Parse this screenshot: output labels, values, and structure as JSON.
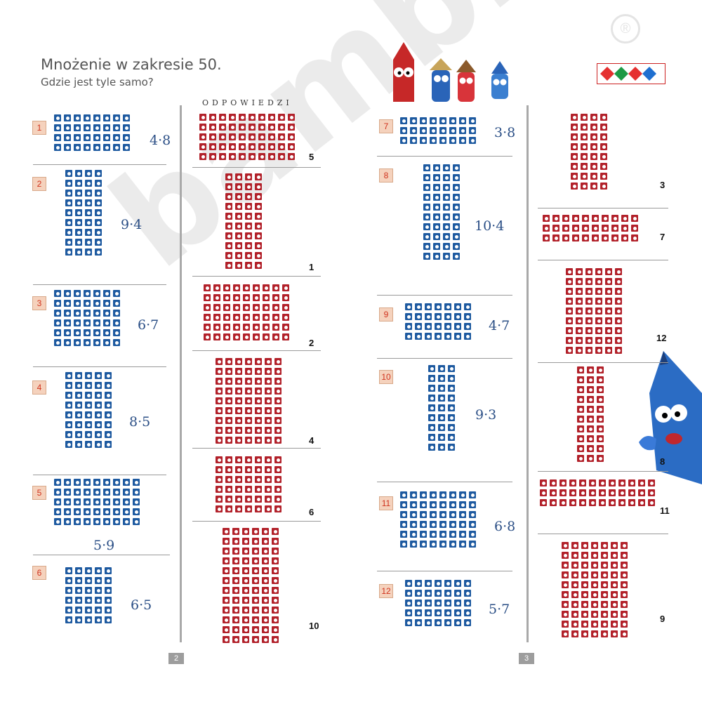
{
  "header": {
    "title": "Mnożenie w zakresie 50.",
    "subtitle": "Gdzie jest tyle samo?",
    "answers_label": "ODPOWIEDZI"
  },
  "brand": {
    "watermark": "bambino",
    "registered": "®"
  },
  "colors": {
    "task_blue": "#1e5aa0",
    "answer_red": "#b2212a",
    "number_badge": "#f5d2bd"
  },
  "tasks": [
    {
      "num": "1",
      "expr": "4·8"
    },
    {
      "num": "2",
      "expr": "9·4"
    },
    {
      "num": "3",
      "expr": "6·7"
    },
    {
      "num": "4",
      "expr": "8·5"
    },
    {
      "num": "5",
      "expr": "5·9"
    },
    {
      "num": "6",
      "expr": "6·5"
    },
    {
      "num": "7",
      "expr": "3·8"
    },
    {
      "num": "8",
      "expr": "10·4"
    },
    {
      "num": "9",
      "expr": "4·7"
    },
    {
      "num": "10",
      "expr": "9·3"
    },
    {
      "num": "11",
      "expr": "6·8"
    },
    {
      "num": "12",
      "expr": "5·7"
    }
  ],
  "answers": [
    {
      "label": "5"
    },
    {
      "label": "1"
    },
    {
      "label": "2"
    },
    {
      "label": "4"
    },
    {
      "label": "6"
    },
    {
      "label": "10"
    },
    {
      "label": "3"
    },
    {
      "label": "7"
    },
    {
      "label": "12"
    },
    {
      "label": "8"
    },
    {
      "label": "11"
    },
    {
      "label": "9"
    }
  ],
  "pages": {
    "left": "2",
    "right": "3"
  }
}
